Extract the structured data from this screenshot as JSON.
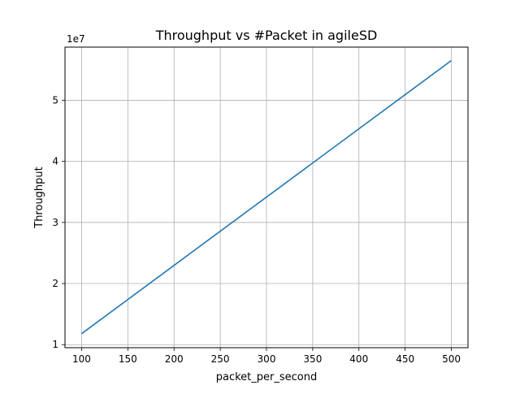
{
  "chart_data": {
    "type": "line",
    "title": "Throughput vs #Packet in agileSD",
    "xlabel": "packet_per_second",
    "ylabel": "Throughput",
    "y_offset_label": "1e7",
    "xlim": [
      82,
      518
    ],
    "ylim": [
      0.95,
      5.87
    ],
    "y_scale_note": "y values shown in units of 1e7",
    "x_ticks": [
      100,
      150,
      200,
      250,
      300,
      350,
      400,
      450,
      500
    ],
    "y_ticks": [
      1,
      2,
      3,
      4,
      5
    ],
    "grid": true,
    "series": [
      {
        "color": "#1f77b4",
        "x": [
          100,
          500
        ],
        "y": [
          1.18,
          5.65
        ]
      }
    ]
  }
}
